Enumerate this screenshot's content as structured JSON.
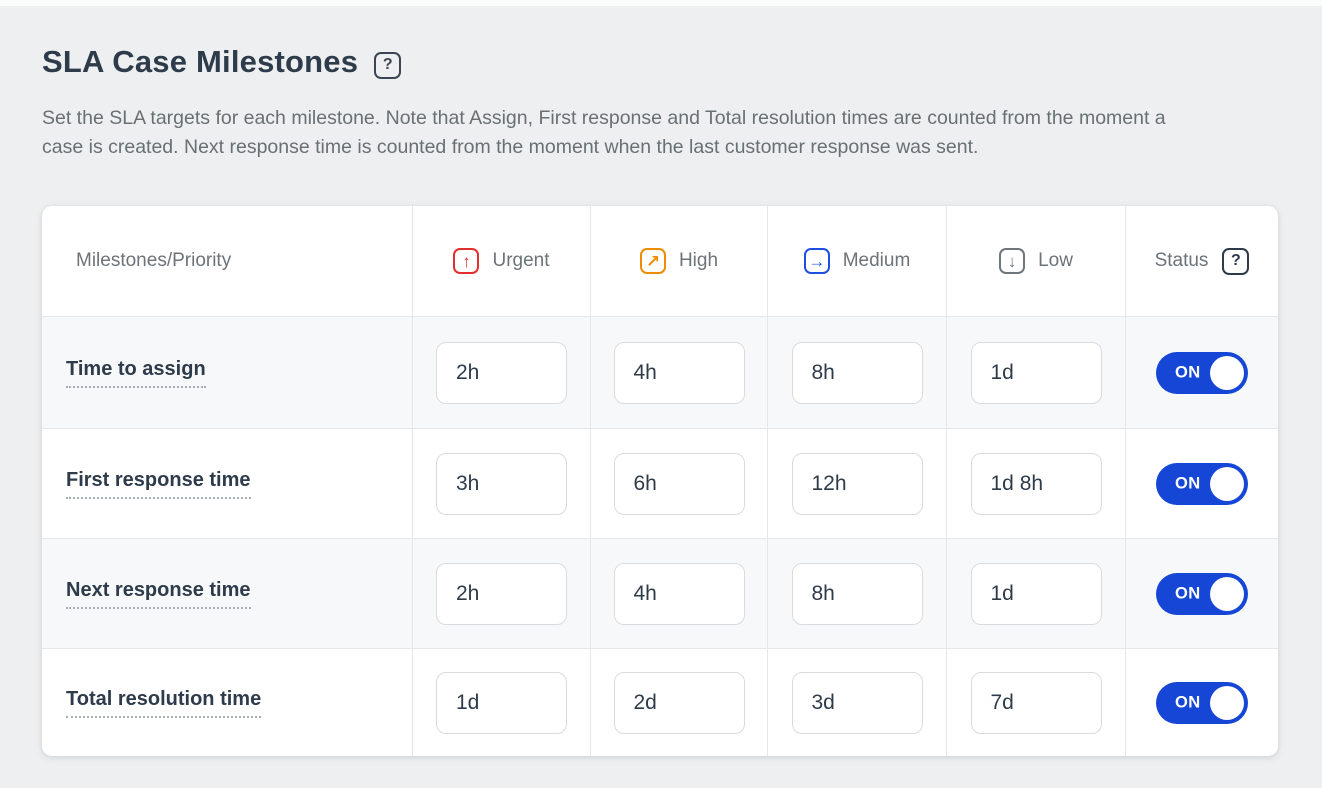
{
  "page": {
    "title": "SLA Case Milestones",
    "title_help_glyph": "?",
    "description_line1": "Set the SLA targets for each milestone. Note that Assign, First response and Total resolution times are counted from the moment a",
    "description_line2": "case is created. Next response time is counted from the moment when the last customer response was sent."
  },
  "table": {
    "first_column_header": "Milestones/Priority",
    "status_header": "Status",
    "status_help_glyph": "?",
    "priorities": [
      {
        "label": "Urgent",
        "icon": "arrow-up-icon",
        "glyph": "↑",
        "color": "#e3302f"
      },
      {
        "label": "High",
        "icon": "arrow-up-right-icon",
        "glyph": "↗",
        "color": "#ef8b03"
      },
      {
        "label": "Medium",
        "icon": "arrow-right-icon",
        "glyph": "→",
        "color": "#1d4fe1"
      },
      {
        "label": "Low",
        "icon": "arrow-down-icon",
        "glyph": "↓",
        "color": "#6e767d"
      }
    ],
    "rows": [
      {
        "milestone": "Time to assign",
        "values": [
          "2h",
          "4h",
          "8h",
          "1d"
        ],
        "status": "ON"
      },
      {
        "milestone": "First response time",
        "values": [
          "3h",
          "6h",
          "12h",
          "1d 8h"
        ],
        "status": "ON"
      },
      {
        "milestone": "Next response time",
        "values": [
          "2h",
          "4h",
          "8h",
          "1d"
        ],
        "status": "ON"
      },
      {
        "milestone": "Total resolution time",
        "values": [
          "1d",
          "2d",
          "3d",
          "7d"
        ],
        "status": "ON"
      }
    ]
  },
  "colors": {
    "page_background": "#edeff0",
    "card_background": "#ffffff",
    "row_stripe": "#f7f8f9",
    "grid_line": "#e5e8ea",
    "heading_text": "#2e3b4b",
    "body_text": "#697074",
    "header_text": "#6c7379",
    "toggle_on_blue": "#1546d6",
    "urgent_red": "#e3302f",
    "high_orange": "#ef8b03",
    "medium_blue": "#1d4fe1",
    "low_gray": "#6e767d"
  }
}
